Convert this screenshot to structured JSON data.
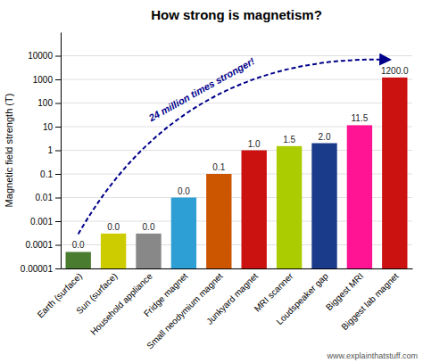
{
  "chart_data": {
    "type": "bar",
    "title": "How strong is magnetism?",
    "ylabel": "Magnetic field strength (T)",
    "categories": [
      "Earth (surface)",
      "Sun (surface)",
      "Household appliance",
      "Fridge magnet",
      "Small neodymium magnet",
      "Junkyard magnet",
      "MRI scanner",
      "Loudspeaker gap",
      "Biggest MRI",
      "Biggest lab magnet"
    ],
    "values": [
      5e-05,
      0.0003,
      0.0003,
      0.01,
      0.1,
      1.0,
      1.5,
      2.0,
      11.5,
      1200.0
    ],
    "value_labels": [
      "0.0",
      "0.0",
      "0.0",
      "0.0",
      "0.1",
      "1.0",
      "1.5",
      "2.0",
      "11.5",
      "1200.0"
    ],
    "data_labels": true,
    "colors": [
      "#4a7c2f",
      "#cccc00",
      "#888888",
      "#2e9fd4",
      "#cc5500",
      "#cc1111",
      "#aacc00",
      "#1a3a8a",
      "#ff1493",
      "#cc1111"
    ],
    "log": "y",
    "ylim": [
      1e-05,
      100000
    ],
    "yticks": [
      1e-05,
      0.0001,
      0.001,
      0.01,
      0.1,
      1,
      10,
      100,
      1000,
      10000
    ],
    "grid": true,
    "annotations": [
      {
        "text": "24 million times stronger!",
        "color": "#00008b"
      },
      {
        "text": "www.explainthatstuff.com"
      }
    ]
  }
}
